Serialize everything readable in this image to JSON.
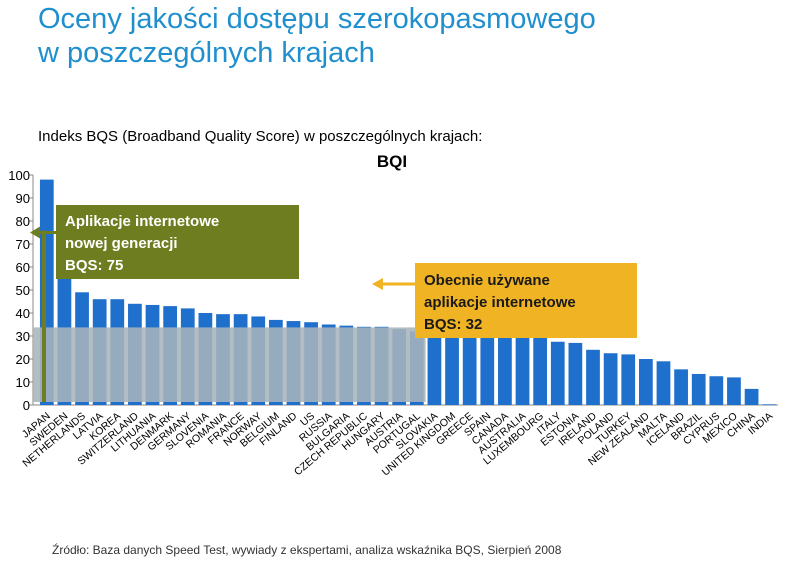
{
  "title_line1": "Oceny jakości dostępu szerokopasmowego",
  "title_line2": "w poszczególnych krajach",
  "source": "Źródło: Baza danych Speed Test, wywiady z ekspertami, analiza wskaźnika BQS, Sierpień 2008",
  "colors": {
    "title": "#1f8fce",
    "bar": "#1f6fcc",
    "threshold_band": "#a9b4bc",
    "green_box": "#6e7d1f",
    "orange_box": "#f0b323"
  },
  "callouts": {
    "next_gen": {
      "lines": [
        "Aplikacje internetowe",
        "nowej generacji",
        "BQS: 75"
      ],
      "bqs": 75,
      "arrow": "left"
    },
    "current": {
      "lines": [
        "Obecnie używane",
        "aplikacje internetowe",
        "BQS: 32"
      ],
      "bqs": 32,
      "arrow": "left"
    }
  },
  "chart_data": {
    "type": "bar",
    "chart_title": "BQI",
    "subtitle": "Indeks BQS (Broadband Quality Score) w poszczególnych krajach:",
    "categories": [
      "JAPAN",
      "SWEDEN",
      "NETHERLANDS",
      "LATVIA",
      "KOREA",
      "SWITZERLAND",
      "LITHUANIA",
      "DENMARK",
      "GERMANY",
      "SLOVENIA",
      "ROMANIA",
      "FRANCE",
      "NORWAY",
      "BELGIUM",
      "FINLAND",
      "US",
      "RUSSIA",
      "BULGARIA",
      "CZECH REPUBLIC",
      "HUNGARY",
      "AUSTRIA",
      "PORTUGAL",
      "SLOVAKIA",
      "UNITED KINGDOM",
      "GREECE",
      "SPAIN",
      "CANADA",
      "AUSTRALIA",
      "LUXEMBOURG",
      "ITALY",
      "ESTONIA",
      "IRELAND",
      "POLAND",
      "TURKEY",
      "NEW ZEALAND",
      "MALTA",
      "ICELAND",
      "BRAZIL",
      "CYPRUS",
      "MEXICO",
      "CHINA",
      "INDIA"
    ],
    "values": [
      98,
      63,
      49,
      46,
      46,
      44,
      43.5,
      43,
      42,
      40,
      39.5,
      39.5,
      38.5,
      37,
      36.5,
      36,
      35,
      34.5,
      34,
      34,
      33,
      32,
      31,
      31,
      31,
      31,
      31,
      30,
      30,
      27.5,
      27,
      24,
      22.5,
      22,
      20,
      19,
      15.5,
      13.5,
      12.5,
      12,
      7,
      0.3
    ],
    "yticks": [
      0,
      10,
      20,
      30,
      40,
      50,
      60,
      70,
      80,
      90,
      100
    ],
    "ylim": [
      0,
      100
    ],
    "grid": false,
    "legend": "none"
  }
}
